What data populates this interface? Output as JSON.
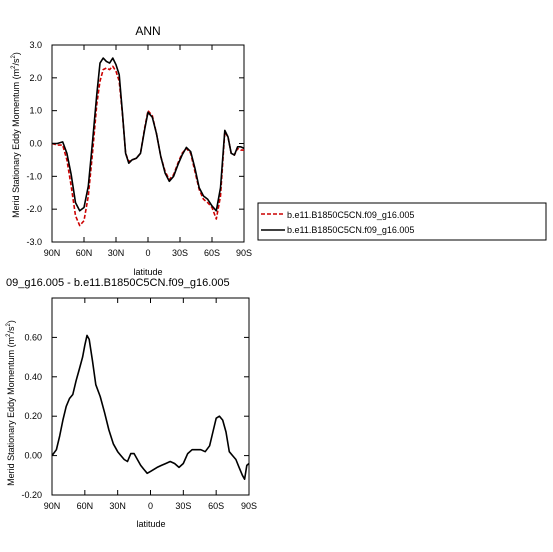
{
  "chart_data": [
    {
      "type": "line",
      "title": "ANN",
      "xlabel": "latitude",
      "ylabel": "Merid Stationary Eddy Momentum (m²/s²)",
      "ylabel_text": "Merid Stationary Eddy Momentum (m",
      "ylabel_unit_sup": "2",
      "ylabel_text2": "/s",
      "ylabel_unit_sup2": "2",
      "ylabel_close": ")",
      "xlim": [
        90,
        -90
      ],
      "ylim": [
        -3.0,
        3.0
      ],
      "x_ticks": [
        90,
        60,
        30,
        0,
        -30,
        -60,
        -90
      ],
      "x_tick_labels": [
        "90N",
        "60N",
        "30N",
        "0",
        "30S",
        "60S",
        "90S"
      ],
      "y_ticks": [
        3.0,
        2.0,
        1.0,
        0.0,
        -1.0,
        -2.0,
        -3.0
      ],
      "y_tick_labels": [
        "3.0",
        "2.0",
        "1.0",
        "0.0",
        "-1.0",
        "-2.0",
        "-3.0"
      ],
      "legend_position": "right",
      "series": [
        {
          "name": "b.e11.B1850C5CN.f09_g16.005",
          "color": "#cc0000",
          "dash": "dashed",
          "x": [
            90,
            85,
            80,
            76,
            72,
            68,
            64,
            60,
            56,
            52,
            48,
            45,
            42,
            39,
            36,
            33,
            30,
            27,
            24,
            21,
            18,
            15,
            11,
            7,
            3,
            0,
            -4,
            -8,
            -12,
            -16,
            -20,
            -24,
            -28,
            -32,
            -36,
            -40,
            -44,
            -48,
            -52,
            -56,
            -60,
            -64,
            -68,
            -72,
            -75,
            -78,
            -81,
            -84,
            -87,
            -90
          ],
          "y": [
            0.0,
            -0.05,
            -0.05,
            -0.5,
            -1.3,
            -2.2,
            -2.5,
            -2.35,
            -1.6,
            -0.3,
            1.2,
            1.9,
            2.25,
            2.3,
            2.25,
            2.35,
            2.2,
            1.9,
            0.9,
            -0.3,
            -0.55,
            -0.5,
            -0.45,
            -0.3,
            0.5,
            1.0,
            0.85,
            0.3,
            -0.4,
            -0.85,
            -1.1,
            -0.95,
            -0.6,
            -0.3,
            -0.15,
            -0.3,
            -0.85,
            -1.4,
            -1.7,
            -1.8,
            -1.95,
            -2.3,
            -1.6,
            0.35,
            0.2,
            -0.3,
            -0.35,
            -0.15,
            -0.2,
            -0.2
          ]
        },
        {
          "name": "b.e11.B1850C5CN.f09_g16.005",
          "color": "#000000",
          "dash": "solid",
          "x": [
            90,
            85,
            80,
            76,
            72,
            68,
            64,
            60,
            56,
            52,
            48,
            45,
            42,
            39,
            36,
            33,
            30,
            27,
            24,
            21,
            18,
            15,
            11,
            7,
            3,
            0,
            -4,
            -8,
            -12,
            -16,
            -20,
            -24,
            -28,
            -32,
            -36,
            -40,
            -44,
            -48,
            -52,
            -56,
            -60,
            -64,
            -68,
            -72,
            -75,
            -78,
            -81,
            -84,
            -87,
            -90
          ],
          "y": [
            0.0,
            0.0,
            0.05,
            -0.3,
            -0.95,
            -1.8,
            -2.05,
            -1.95,
            -1.3,
            0.05,
            1.5,
            2.45,
            2.6,
            2.5,
            2.45,
            2.6,
            2.4,
            2.1,
            0.95,
            -0.3,
            -0.6,
            -0.5,
            -0.45,
            -0.3,
            0.45,
            0.95,
            0.8,
            0.3,
            -0.4,
            -0.9,
            -1.15,
            -1.0,
            -0.65,
            -0.35,
            -0.12,
            -0.25,
            -0.75,
            -1.35,
            -1.6,
            -1.7,
            -1.9,
            -2.05,
            -1.35,
            0.4,
            0.2,
            -0.3,
            -0.35,
            -0.1,
            -0.1,
            -0.15
          ]
        }
      ]
    },
    {
      "type": "line",
      "title": "09_g16.005 - b.e11.B1850C5CN.f09_g16.005",
      "xlabel": "latitude",
      "ylabel": "Merid Stationary Eddy Momentum (m²/s²)",
      "ylabel_text": "Merid Stationary Eddy Momentum (m",
      "ylabel_unit_sup": "2",
      "ylabel_text2": "/s",
      "ylabel_unit_sup2": "2",
      "ylabel_close": ")",
      "xlim": [
        90,
        -90
      ],
      "ylim": [
        -0.2,
        0.8
      ],
      "x_ticks": [
        90,
        60,
        30,
        0,
        -30,
        -60,
        -90
      ],
      "x_tick_labels": [
        "90N",
        "60N",
        "30N",
        "0",
        "30S",
        "60S",
        "90S"
      ],
      "y_ticks": [
        0.6,
        0.4,
        0.2,
        0.0,
        -0.2
      ],
      "y_tick_labels": [
        "0.60",
        "0.40",
        "0.20",
        "0.00",
        "-0.20"
      ],
      "series": [
        {
          "color": "#000000",
          "dash": "solid",
          "x": [
            90,
            86,
            83,
            80,
            77,
            74,
            71,
            68,
            65,
            62,
            60,
            58,
            56,
            53,
            50,
            46,
            42,
            38,
            34,
            30,
            27,
            24,
            21,
            18,
            15,
            12,
            9,
            6,
            3,
            0,
            -3,
            -6,
            -10,
            -14,
            -18,
            -22,
            -26,
            -30,
            -34,
            -38,
            -42,
            -46,
            -50,
            -54,
            -57,
            -60,
            -63,
            -66,
            -69,
            -72,
            -75,
            -78,
            -81,
            -84,
            -86,
            -88,
            -90
          ],
          "y": [
            0.0,
            0.03,
            0.1,
            0.18,
            0.25,
            0.29,
            0.31,
            0.38,
            0.44,
            0.5,
            0.56,
            0.61,
            0.59,
            0.48,
            0.36,
            0.3,
            0.22,
            0.13,
            0.06,
            0.02,
            0.0,
            -0.02,
            -0.03,
            0.01,
            0.01,
            -0.02,
            -0.05,
            -0.07,
            -0.09,
            -0.08,
            -0.07,
            -0.06,
            -0.05,
            -0.04,
            -0.03,
            -0.04,
            -0.06,
            -0.04,
            0.01,
            0.03,
            0.03,
            0.03,
            0.02,
            0.05,
            0.12,
            0.19,
            0.2,
            0.18,
            0.12,
            0.02,
            0.0,
            -0.02,
            -0.06,
            -0.1,
            -0.12,
            -0.05,
            -0.04
          ]
        }
      ]
    }
  ]
}
